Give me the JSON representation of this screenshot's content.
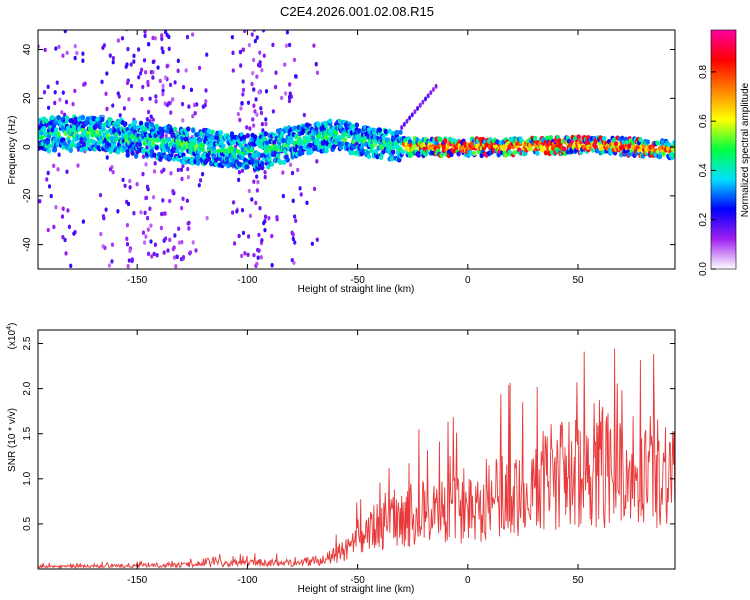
{
  "title": "C2E4.2026.001.02.08.R15",
  "colors": {
    "snr_line": "#e83a3a",
    "axis": "#000000"
  },
  "chart_data": [
    {
      "type": "heatmap",
      "xlabel": "Height of straight line (km)",
      "ylabel": "Frequency (Hz)",
      "xlim": [
        -195,
        94
      ],
      "ylim": [
        -50,
        48
      ],
      "x_ticks": [
        -150,
        -100,
        -50,
        0,
        50
      ],
      "y_ticks": [
        -40,
        -20,
        0,
        20,
        40
      ],
      "colorbar": {
        "label": "Normalized spectral amplitude",
        "range": [
          0,
          0.97
        ],
        "ticks": [
          "0.0",
          "0.2",
          "0.4",
          "0.6",
          "0.8"
        ],
        "colormap": [
          "#ffffff",
          "#a020f0",
          "#0000ff",
          "#00e0ff",
          "#00ff40",
          "#ffff00",
          "#ff8000",
          "#ff0000",
          "#ff00a0"
        ]
      },
      "ridge": [
        [
          -195,
          5
        ],
        [
          -170,
          6
        ],
        [
          -150,
          3
        ],
        [
          -130,
          1
        ],
        [
          -110,
          -1
        ],
        [
          -95,
          -2
        ],
        [
          -85,
          0
        ],
        [
          -75,
          3
        ],
        [
          -60,
          5
        ],
        [
          -45,
          2
        ],
        [
          -30,
          0
        ],
        [
          -20,
          0
        ],
        [
          0,
          0
        ],
        [
          25,
          0
        ],
        [
          50,
          1
        ],
        [
          75,
          0
        ],
        [
          94,
          -1
        ]
      ]
    },
    {
      "type": "line",
      "xlabel": "Height of straight line (km)",
      "ylabel": "SNR (10 * v/v)",
      "multiplier_label": "(x10",
      "multiplier_exp": "4",
      "multiplier_close": ")",
      "xlim": [
        -195,
        94
      ],
      "ylim": [
        0,
        2.65
      ],
      "x_ticks": [
        -150,
        -100,
        -50,
        0,
        50
      ],
      "y_ticks": [
        "0.5",
        "1.0",
        "1.5",
        "2.0",
        "2.5"
      ],
      "envelope": [
        [
          -195,
          0.03
        ],
        [
          -150,
          0.04
        ],
        [
          -120,
          0.06
        ],
        [
          -100,
          0.08
        ],
        [
          -80,
          0.08
        ],
        [
          -65,
          0.12
        ],
        [
          -55,
          0.25
        ],
        [
          -45,
          0.45
        ],
        [
          -35,
          0.7
        ],
        [
          -25,
          0.7
        ],
        [
          -15,
          0.75
        ],
        [
          0,
          0.8
        ],
        [
          15,
          0.95
        ],
        [
          25,
          1.05
        ],
        [
          35,
          1.15
        ],
        [
          50,
          1.25
        ],
        [
          65,
          1.3
        ],
        [
          80,
          1.3
        ],
        [
          94,
          1.3
        ]
      ]
    }
  ]
}
